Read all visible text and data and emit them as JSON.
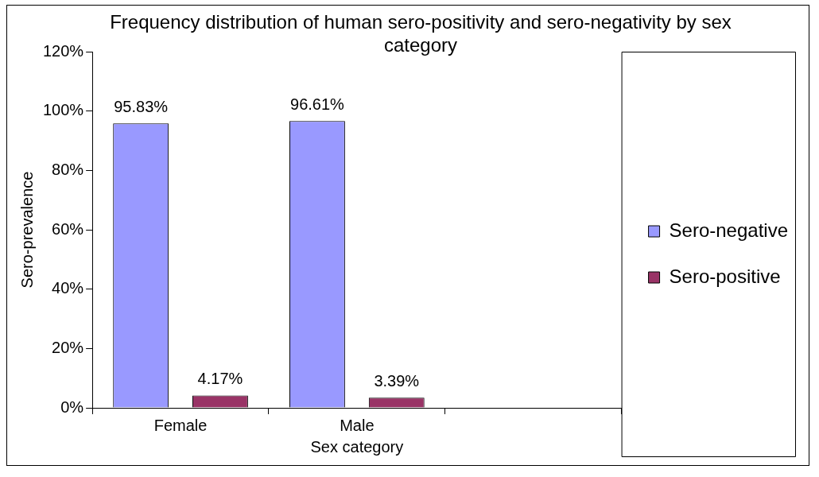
{
  "chart_data": {
    "type": "bar",
    "title": "Frequency distribution of human  sero-positivity and sero-negativity by sex category",
    "xlabel": "Sex category",
    "ylabel": "Sero-prevalence",
    "categories": [
      "Female",
      "Male",
      null
    ],
    "series": [
      {
        "name": "Sero-negative",
        "color": "#9999ff",
        "values": [
          95.83,
          96.61,
          null
        ],
        "value_labels": [
          "95.83%",
          "96.61%",
          null
        ]
      },
      {
        "name": "Sero-positive",
        "color": "#993366",
        "values": [
          4.17,
          3.39,
          null
        ],
        "value_labels": [
          "4.17%",
          "3.39%",
          null
        ]
      }
    ],
    "ylim": [
      0,
      120
    ],
    "yticks": [
      {
        "value": 0,
        "label": "0%"
      },
      {
        "value": 20,
        "label": "20%"
      },
      {
        "value": 40,
        "label": "40%"
      },
      {
        "value": 60,
        "label": "60%"
      },
      {
        "value": 80,
        "label": "80%"
      },
      {
        "value": 100,
        "label": "100%"
      },
      {
        "value": 120,
        "label": "120%"
      }
    ],
    "grid": false,
    "legend": "right"
  }
}
